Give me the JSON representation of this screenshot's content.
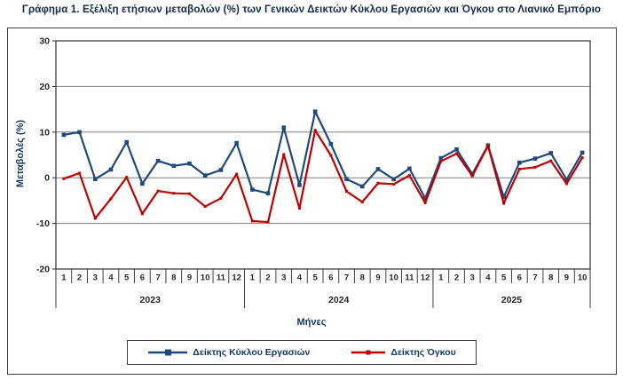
{
  "title": "Γράφημα 1. Εξέλιξη ετήσιων μεταβολών (%) των Γενικών Δεικτών Κύκλου Εργασιών και Όγκου στο Λιανικό Εμπόριο",
  "chart_data": {
    "type": "line",
    "x_axis_title": "Μήνες",
    "y_axis_title": "Μεταβολές  (%)",
    "ylim": [
      -20,
      30
    ],
    "yticks": [
      30,
      20,
      10,
      0,
      -10,
      -20
    ],
    "grid": true,
    "legend_position": "bottom",
    "years": [
      {
        "label": "2023",
        "months": 12
      },
      {
        "label": "2024",
        "months": 12
      },
      {
        "label": "2025",
        "months": 10
      }
    ],
    "month_labels": [
      "1",
      "2",
      "3",
      "4",
      "5",
      "6",
      "7",
      "8",
      "9",
      "10",
      "11",
      "12",
      "1",
      "2",
      "3",
      "4",
      "5",
      "6",
      "7",
      "8",
      "9",
      "10",
      "11",
      "12",
      "1",
      "2",
      "3",
      "4",
      "5",
      "6",
      "7",
      "8",
      "9",
      "10"
    ],
    "series": [
      {
        "name": "Δείκτης Κύκλου Εργασιών",
        "color": "#1F497D",
        "marker": "square",
        "values": [
          9.4,
          10.0,
          -0.3,
          1.8,
          7.8,
          -1.3,
          3.7,
          2.6,
          3.1,
          0.5,
          1.7,
          7.6,
          -2.6,
          -3.4,
          11.0,
          -1.6,
          14.5,
          7.4,
          -0.3,
          -1.9,
          1.9,
          -0.3,
          2.0,
          -4.5,
          4.3,
          6.2,
          0.8,
          7.1,
          -4.2,
          3.3,
          4.2,
          5.4,
          -0.4,
          5.5
        ]
      },
      {
        "name": "Δείκτης Όγκου",
        "color": "#C00000",
        "marker": "small-square",
        "values": [
          -0.2,
          1.0,
          -8.9,
          -4.6,
          0.1,
          -7.9,
          -2.9,
          -3.4,
          -3.5,
          -6.3,
          -4.5,
          0.8,
          -9.5,
          -9.7,
          5.1,
          -6.7,
          10.4,
          4.9,
          -3.0,
          -5.3,
          -1.2,
          -1.4,
          0.5,
          -5.5,
          3.6,
          5.3,
          0.4,
          7.0,
          -5.6,
          1.9,
          2.3,
          3.7,
          -1.3,
          4.4
        ]
      }
    ],
    "colors": {
      "gridline": "#808080",
      "plot_border": "#3f3f3f",
      "tick_text": "#262626",
      "axis_title_text": "#17375d"
    }
  }
}
